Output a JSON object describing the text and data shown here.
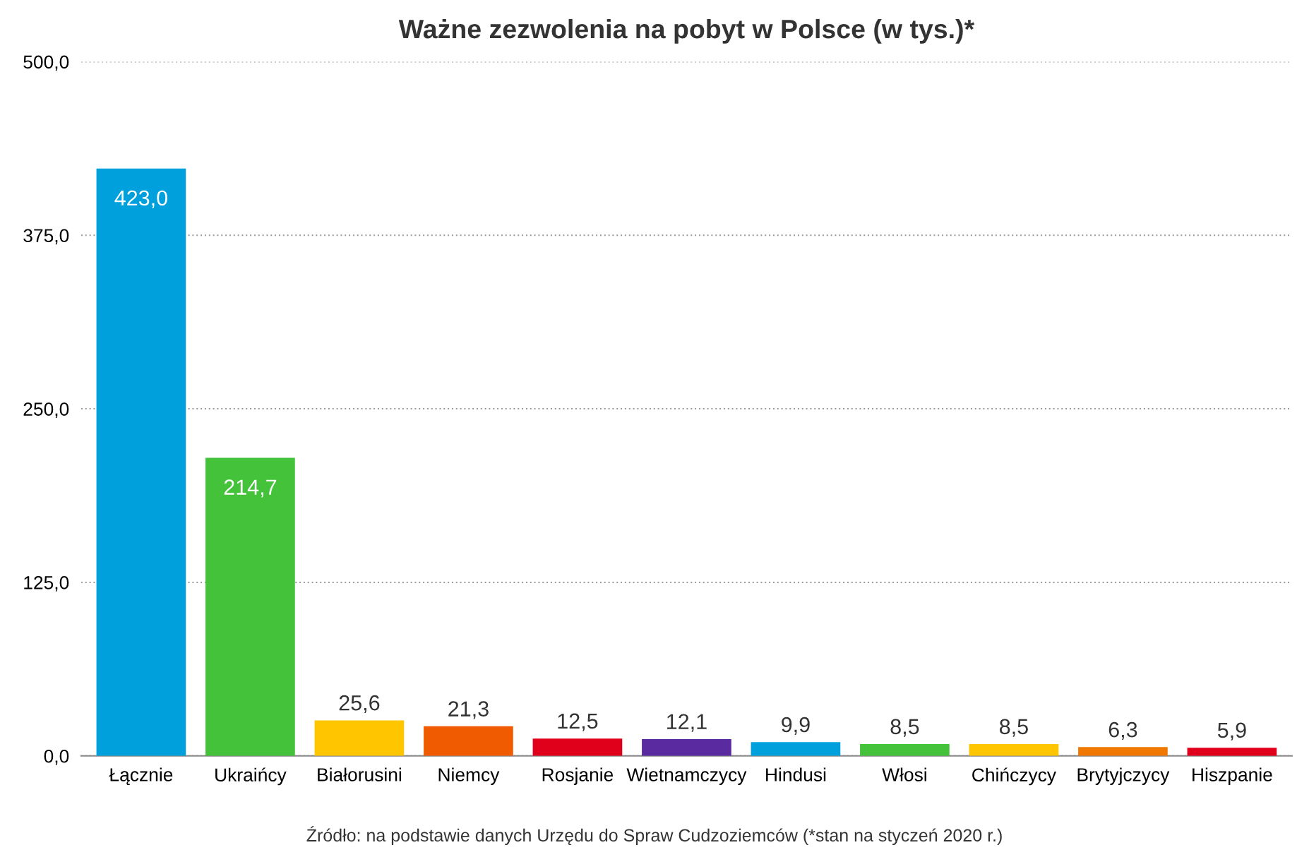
{
  "chart_data": {
    "type": "bar",
    "title": "Ważne zezwolenia na pobyt w Polsce (w tys.)*",
    "categories": [
      "Łącznie",
      "Ukraińcy",
      "Białorusini",
      "Niemcy",
      "Rosjanie",
      "Wietnamczycy",
      "Hindusi",
      "Włosi",
      "Chińczycy",
      "Brytyjczycy",
      "Hiszpanie"
    ],
    "values": [
      423.0,
      214.7,
      25.6,
      21.3,
      12.5,
      12.1,
      9.9,
      8.5,
      8.5,
      6.3,
      5.9
    ],
    "value_labels": [
      "423,0",
      "214,7",
      "25,6",
      "21,3",
      "12,5",
      "12,1",
      "9,9",
      "8,5",
      "8,5",
      "6,3",
      "5,9"
    ],
    "colors": [
      "#00a0dc",
      "#44c23a",
      "#ffc600",
      "#f05a00",
      "#e0001b",
      "#5a2aa0",
      "#00a0dc",
      "#44c23a",
      "#ffc600",
      "#f07800",
      "#e0001b"
    ],
    "ylim": [
      0,
      500
    ],
    "yticks": [
      {
        "value": 0,
        "label": "0,0"
      },
      {
        "value": 125,
        "label": "125,0"
      },
      {
        "value": 250,
        "label": "250,0"
      },
      {
        "value": 375,
        "label": "375,0"
      },
      {
        "value": 500,
        "label": "500,0"
      }
    ],
    "grid": "y",
    "annotations": [
      "Źródło: na podstawie danych Urzędu do Spraw Cudzoziemców (*stan na styczeń 2020 r.)"
    ]
  }
}
